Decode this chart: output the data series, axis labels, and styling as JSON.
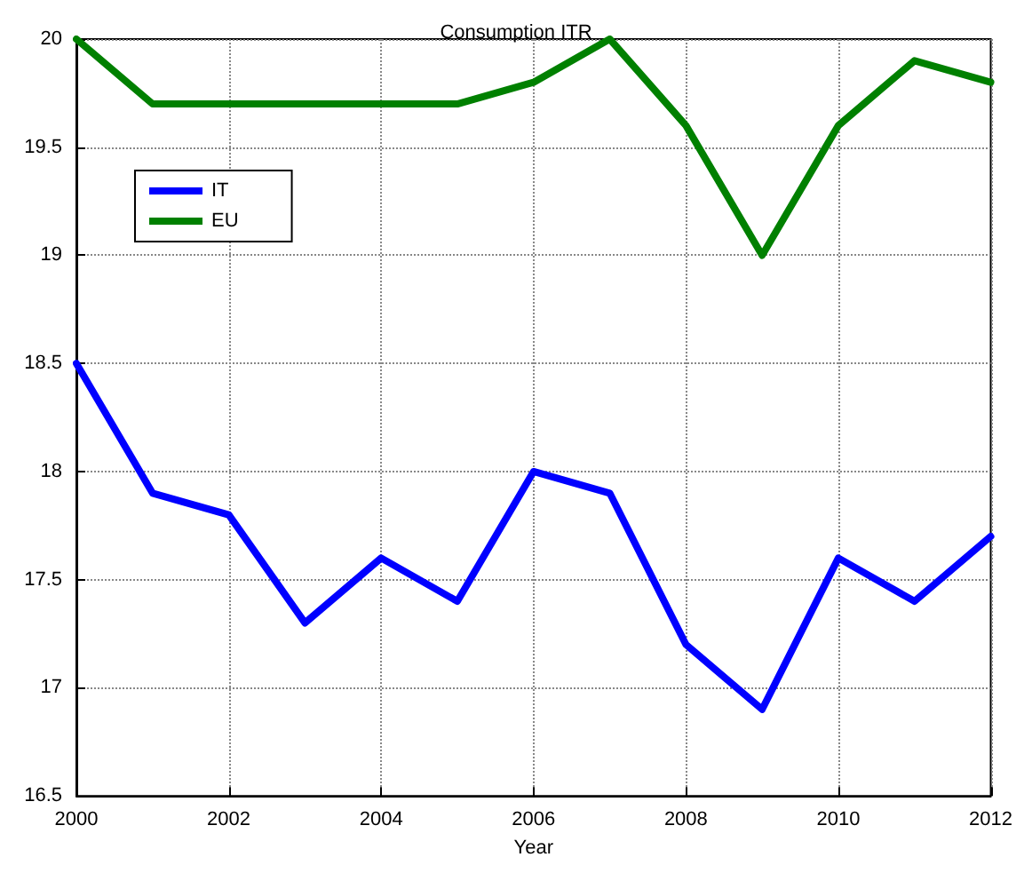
{
  "chart_data": {
    "type": "line",
    "title": "Consumption ITR",
    "xlabel": "Year",
    "x": [
      2000,
      2001,
      2002,
      2003,
      2004,
      2005,
      2006,
      2007,
      2008,
      2009,
      2010,
      2011,
      2012
    ],
    "series": [
      {
        "name": "IT",
        "color": "#0000ff",
        "values": [
          18.5,
          17.9,
          17.8,
          17.3,
          17.6,
          17.4,
          18.0,
          17.9,
          17.2,
          16.9,
          17.6,
          17.4,
          17.7
        ]
      },
      {
        "name": "EU",
        "color": "#008000",
        "values": [
          20.0,
          19.7,
          19.7,
          19.7,
          19.7,
          19.7,
          19.8,
          20.0,
          19.6,
          19.0,
          19.6,
          19.9,
          19.8
        ]
      }
    ],
    "xlim": [
      2000,
      2012
    ],
    "xticks": [
      2000,
      2002,
      2004,
      2006,
      2008,
      2010,
      2012
    ],
    "ylim": [
      16.5,
      20
    ],
    "yticks": [
      16.5,
      17,
      17.5,
      18,
      18.5,
      19,
      19.5,
      20
    ],
    "grid": true,
    "legend": "top left",
    "line_style": "solid",
    "marker": "none"
  }
}
